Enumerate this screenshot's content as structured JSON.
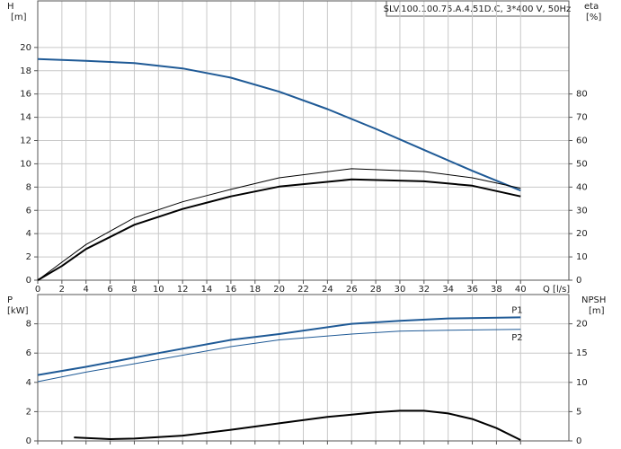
{
  "chart_data": [
    {
      "type": "line",
      "title": "SLV.100.100.75.A.4.51D.C, 3*400 V, 50Hz",
      "ylabel": "H",
      "yunit": "[m]",
      "y2label": "eta",
      "y2unit": "[%]",
      "xlabel": "Q [l/s]",
      "xlim": [
        0,
        44
      ],
      "xticks": [
        0,
        2,
        4,
        6,
        8,
        10,
        12,
        14,
        16,
        18,
        20,
        22,
        24,
        26,
        28,
        30,
        32,
        34,
        36,
        38,
        40
      ],
      "ylim": [
        0,
        24
      ],
      "yticks": [
        0,
        2,
        4,
        6,
        8,
        10,
        12,
        14,
        16,
        18,
        20
      ],
      "y2lim": [
        0,
        120
      ],
      "y2ticks": [
        0,
        10,
        20,
        30,
        40,
        50,
        60,
        70,
        80
      ],
      "grid": true,
      "xtick_labels": true,
      "series": [
        {
          "color": "#1f5a96",
          "line_width": 2,
          "x": [
            0,
            4,
            8,
            12,
            16,
            20,
            24,
            28,
            32,
            36,
            40
          ],
          "values": [
            19.0,
            18.85,
            18.65,
            18.2,
            17.4,
            16.2,
            14.7,
            13.0,
            11.2,
            9.4,
            7.7
          ]
        },
        {
          "color": "#000000",
          "line_width": 1,
          "axis": "y2",
          "x": [
            0,
            2,
            4,
            8,
            12,
            16,
            20,
            26,
            32,
            36,
            40
          ],
          "values": [
            0,
            7.7,
            15.3,
            26.8,
            33.7,
            39,
            44,
            47.9,
            46.7,
            44,
            39.5
          ]
        },
        {
          "color": "#000000",
          "line_width": 2,
          "axis": "y2",
          "x": [
            0,
            2,
            4,
            8,
            12,
            16,
            20,
            26,
            32,
            36,
            40
          ],
          "values": [
            0,
            6.1,
            13.4,
            23.8,
            30.6,
            36,
            40.2,
            43.3,
            42.5,
            40.6,
            36
          ]
        }
      ]
    },
    {
      "type": "line",
      "ylabel": "P",
      "yunit": "[kW]",
      "y2label": "NPSH",
      "y2unit": "[m]",
      "xlim": [
        0,
        44
      ],
      "xticks": [
        0,
        2,
        4,
        6,
        8,
        10,
        12,
        14,
        16,
        18,
        20,
        22,
        24,
        26,
        28,
        30,
        32,
        34,
        36,
        38,
        40
      ],
      "ylim": [
        0,
        10
      ],
      "yticks": [
        0,
        2,
        4,
        6,
        8
      ],
      "y2lim": [
        0,
        25
      ],
      "y2ticks": [
        0,
        5,
        10,
        15,
        20
      ],
      "grid": true,
      "xtick_labels": false,
      "series": [
        {
          "name": "P1",
          "color": "#1f5a96",
          "line_width": 2,
          "x": [
            0,
            4,
            10,
            16,
            20,
            26,
            30,
            34,
            40
          ],
          "values": [
            4.5,
            5.06,
            6.0,
            6.9,
            7.3,
            8.0,
            8.2,
            8.37,
            8.44
          ]
        },
        {
          "name": "P2",
          "color": "#1f5a96",
          "line_width": 1,
          "x": [
            0,
            4,
            10,
            16,
            20,
            26,
            30,
            34,
            40
          ],
          "values": [
            4.05,
            4.7,
            5.56,
            6.44,
            6.9,
            7.3,
            7.5,
            7.56,
            7.62
          ]
        },
        {
          "color": "#000000",
          "line_width": 2,
          "axis": "y2",
          "x": [
            3,
            6,
            8,
            12,
            16,
            20,
            24,
            28,
            30,
            32,
            34,
            36,
            38,
            40
          ],
          "values": [
            0.6,
            0.3,
            0.4,
            0.9,
            1.9,
            3.0,
            4.1,
            4.9,
            5.15,
            5.15,
            4.7,
            3.75,
            2.2,
            0.15
          ]
        }
      ]
    }
  ]
}
